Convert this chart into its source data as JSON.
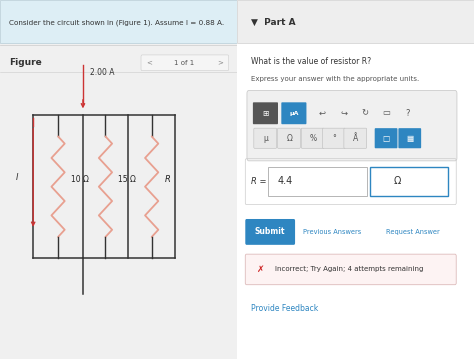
{
  "bg_color": "#f0f0f0",
  "right_panel_bg": "#ffffff",
  "left_panel_bg": "#ffffff",
  "header_text": "Consider the circuit shown in (Figure 1). Assume I = 0.88 A.",
  "part_a_label": "Part A",
  "question_text": "What is the value of resistor R?",
  "express_text": "Express your answer with the appropriate units.",
  "answer_value": "4.4",
  "answer_unit": "Ω",
  "r_label": "R =",
  "submit_btn_color": "#2e86c1",
  "submit_btn_text": "Submit",
  "prev_ans_text": "Previous Answers",
  "req_ans_text": "Request Answer",
  "error_text": "Incorrect; Try Again; 4 attempts remaining",
  "error_bg": "#fdf3f3",
  "error_border": "#ddbbbb",
  "feedback_text": "Provide Feedback",
  "figure_label": "Figure",
  "page_label": "1 of 1",
  "circuit_color": "#333333",
  "resistor_color": "#e8a090",
  "arrow_color": "#cc3333",
  "current_label_top": "2.00 A",
  "current_label_left": "I",
  "r1_label": "10 Ω",
  "r2_label": "15 Ω",
  "r3_label": "R",
  "toolbar_bg": "#e8e8e8",
  "icon_dark_bg": "#555555",
  "icon_blue_bg": "#2e86c1",
  "icon_gray_bg": "#888888"
}
